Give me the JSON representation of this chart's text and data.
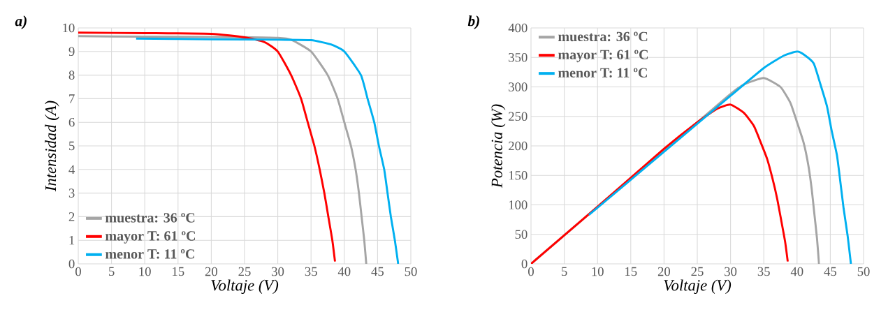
{
  "chart_data": [
    {
      "type": "line",
      "title": "a)",
      "xlabel": "Voltaje (V)",
      "ylabel": "Intensidad (A)",
      "xlim": [
        0,
        50
      ],
      "ylim": [
        0,
        10
      ],
      "xticks": [
        0,
        5,
        10,
        15,
        20,
        25,
        30,
        35,
        40,
        45,
        50
      ],
      "yticks": [
        0,
        1,
        2,
        3,
        4,
        5,
        6,
        7,
        8,
        9,
        10
      ],
      "grid": true,
      "legend": "bottom left",
      "marker": "none",
      "line_style": "solid",
      "series": [
        {
          "name": "muestra: 36 ºC",
          "color": "#a5a5a5",
          "x": [
            0,
            10,
            20,
            25,
            30,
            32,
            35,
            37.5,
            39,
            40,
            41,
            41.7,
            42.2,
            42.6,
            43,
            43.3
          ],
          "values": [
            9.65,
            9.63,
            9.62,
            9.61,
            9.58,
            9.5,
            9.0,
            8.0,
            7.0,
            6.0,
            5.0,
            4.0,
            3.0,
            2.0,
            1.0,
            0
          ]
        },
        {
          "name": "mayor T: 61 ºC",
          "color": "#ff0000",
          "x": [
            0,
            10,
            20,
            25,
            28,
            30,
            32,
            33.5,
            34.5,
            35.5,
            36.3,
            37,
            37.6,
            38.2,
            38.6
          ],
          "values": [
            9.8,
            9.78,
            9.75,
            9.6,
            9.4,
            9.0,
            8.0,
            7.0,
            6.0,
            5.0,
            4.0,
            3.0,
            2.0,
            1.0,
            0.1
          ]
        },
        {
          "name": "menor T: 11 ºC",
          "color": "#00b0f0",
          "x": [
            8.7,
            20,
            30,
            35,
            38,
            40,
            42.5,
            43.5,
            44.5,
            45.2,
            46,
            46.5,
            47,
            47.6,
            48.1
          ],
          "values": [
            9.55,
            9.52,
            9.5,
            9.48,
            9.3,
            9.0,
            8.0,
            7.0,
            6.0,
            5.0,
            4.0,
            3.0,
            2.0,
            1.0,
            0
          ]
        }
      ]
    },
    {
      "type": "line",
      "title": "b)",
      "xlabel": "Voltaje (V)",
      "ylabel": "Potencia (W)",
      "xlim": [
        0,
        50
      ],
      "ylim": [
        0,
        400
      ],
      "xticks": [
        0,
        5,
        10,
        15,
        20,
        25,
        30,
        35,
        40,
        45,
        50
      ],
      "yticks": [
        0,
        50,
        100,
        150,
        200,
        250,
        300,
        350,
        400
      ],
      "grid": true,
      "legend": "top left",
      "marker": "none",
      "line_style": "solid",
      "series": [
        {
          "name": "muestra: 36 ºC",
          "color": "#a5a5a5",
          "x": [
            0,
            20,
            25,
            30,
            32,
            35,
            37.5,
            39,
            40,
            41,
            41.7,
            42.2,
            42.6,
            43,
            43.3
          ],
          "values": [
            0,
            193,
            240,
            288,
            304,
            315,
            300,
            273,
            240,
            205,
            167,
            127,
            85,
            43,
            0
          ]
        },
        {
          "name": "mayor T: 61 ºC",
          "color": "#ff0000",
          "x": [
            0,
            10,
            20,
            25,
            28,
            30,
            32,
            33.5,
            34.5,
            35.5,
            36.3,
            37,
            37.6,
            38.2,
            38.6
          ],
          "values": [
            0,
            97,
            195,
            240,
            263,
            270,
            256,
            234,
            207,
            178,
            145,
            111,
            75,
            38,
            4
          ]
        },
        {
          "name": "menor T: 11 ºC",
          "color": "#00b0f0",
          "x": [
            8.7,
            20,
            30,
            35,
            38,
            40,
            41,
            42.5,
            43.5,
            44.5,
            45.2,
            46,
            46.5,
            47,
            47.6,
            48.1
          ],
          "values": [
            83,
            190,
            285,
            332,
            353,
            360,
            355,
            340,
            305,
            267,
            226,
            184,
            140,
            94,
            48,
            0
          ]
        }
      ]
    }
  ]
}
